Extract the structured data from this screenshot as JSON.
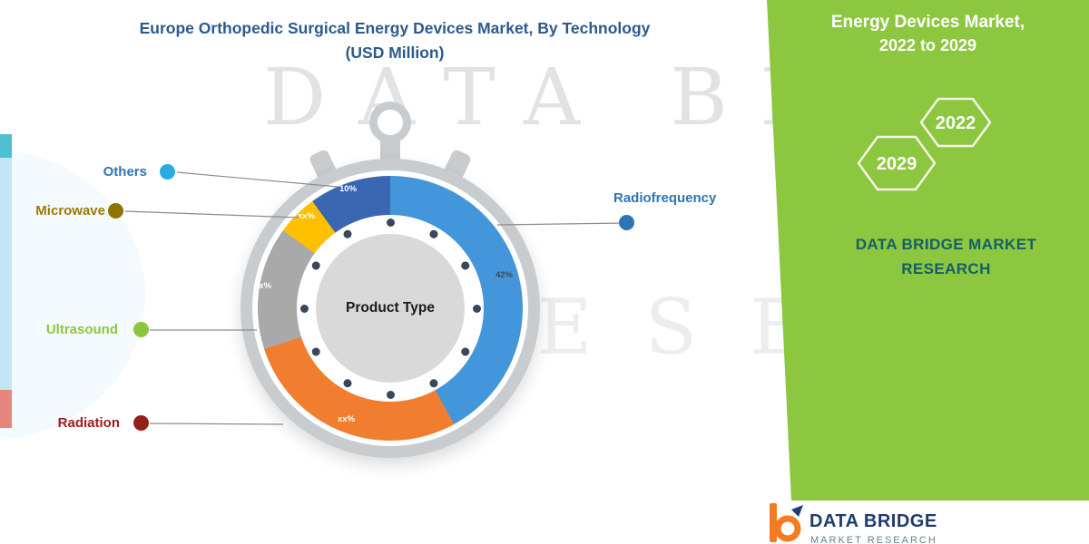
{
  "title": {
    "line1": "Europe Orthopedic Surgical Energy Devices Market, By Technology",
    "line2": "(USD Million)"
  },
  "chart_data": {
    "type": "pie",
    "title": "Europe Orthopedic Surgical Energy Devices Market, By Technology (USD Million)",
    "center_label": "Product Type",
    "legend_position": "around",
    "segments": [
      {
        "label": "Radiofrequency",
        "value_pct": 42,
        "display": "42%",
        "color": "#4496DA",
        "label_color": "#2E75B6",
        "dot_color": "#2E75B6",
        "pct_color": "#3D4A57"
      },
      {
        "label": "Radiation",
        "value_pct": 28,
        "display": "xx%",
        "color": "#F07E2E",
        "label_color": "#A01D1D",
        "dot_color": "#93201A",
        "pct_color": "#FFFFFF"
      },
      {
        "label": "Ultrasound",
        "value_pct": 15,
        "display": "xx%",
        "color": "#A9A9A9",
        "label_color": "#8CC63F",
        "dot_color": "#8CC63F",
        "pct_color": "#FFFFFF"
      },
      {
        "label": "Microwave",
        "value_pct": 5,
        "display": "xx%",
        "color": "#FFC000",
        "label_color": "#9C7A00",
        "dot_color": "#8F7500",
        "pct_color": "#FFFFFF"
      },
      {
        "label": "Others",
        "value_pct": 10,
        "display": "10%",
        "color": "#3A67B1",
        "label_color": "#2E75B6",
        "dot_color": "#29ABE2",
        "pct_color": "#FFFFFF"
      }
    ]
  },
  "side_panel": {
    "bg_color": "#8DC63F",
    "heading_line1": "Energy Devices Market,",
    "heading_line2": "2022 to 2029",
    "hex_left_year": "2029",
    "hex_right_year": "2022",
    "brand_line1": "DATA BRIDGE MARKET",
    "brand_line2": "RESEARCH"
  },
  "watermark": {
    "line1": "DATA BRIDGE",
    "line2": "RESEARCH"
  },
  "footer": {
    "brand": "DATA BRIDGE",
    "sub": "MARKET RESEARCH"
  }
}
